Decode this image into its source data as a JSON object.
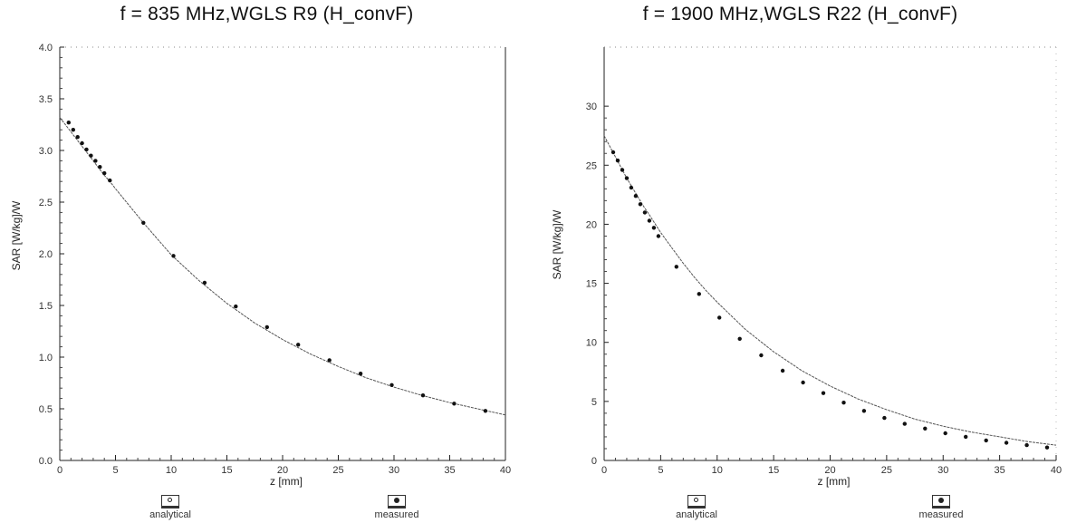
{
  "chart_data": [
    {
      "type": "line",
      "title": "f = 835 MHz,WGLS R9 (H_convF)",
      "xlabel": "z [mm]",
      "ylabel": "SAR [W/kg]/W",
      "xlim": [
        0,
        40
      ],
      "ylim": [
        0,
        4.0
      ],
      "x_ticks": [
        0,
        5,
        10,
        15,
        20,
        25,
        30,
        35,
        40
      ],
      "y_ticks": [
        0.0,
        0.5,
        1.0,
        1.5,
        2.0,
        2.5,
        3.0,
        3.5,
        4.0
      ],
      "x_tick_labels": [
        "0",
        "5",
        "10",
        "15",
        "20",
        "25",
        "30",
        "35",
        "40"
      ],
      "y_tick_labels": [
        "0.0",
        "0.5",
        "1.0",
        "1.5",
        "2.0",
        "2.5",
        "3.0",
        "3.5",
        "4.0"
      ],
      "grid": false,
      "legend": [
        "analytical",
        "measured"
      ],
      "series": [
        {
          "name": "analytical",
          "x": [
            0.0,
            0.5,
            1.0,
            1.5,
            2.0,
            2.5,
            3.0,
            3.5,
            4.0,
            4.5,
            5.0,
            7.5,
            10.0,
            12.5,
            15.0,
            17.5,
            20.0,
            22.5,
            25.0,
            27.5,
            30.0,
            32.5,
            35.0,
            37.5,
            40.0
          ],
          "y": [
            3.32,
            3.25,
            3.18,
            3.11,
            3.04,
            2.97,
            2.9,
            2.83,
            2.76,
            2.7,
            2.63,
            2.3,
            1.99,
            1.74,
            1.52,
            1.33,
            1.17,
            1.03,
            0.91,
            0.8,
            0.71,
            0.63,
            0.56,
            0.5,
            0.44
          ]
        },
        {
          "name": "measured",
          "x": [
            0.8,
            1.2,
            1.6,
            2.0,
            2.4,
            2.8,
            3.2,
            3.6,
            4.0,
            4.5,
            7.5,
            10.2,
            13.0,
            15.8,
            18.6,
            21.4,
            24.2,
            27.0,
            29.8,
            32.6,
            35.4,
            38.2
          ],
          "y": [
            3.27,
            3.2,
            3.13,
            3.07,
            3.01,
            2.95,
            2.9,
            2.84,
            2.78,
            2.71,
            2.3,
            1.98,
            1.72,
            1.49,
            1.29,
            1.12,
            0.97,
            0.84,
            0.73,
            0.63,
            0.55,
            0.48
          ]
        }
      ]
    },
    {
      "type": "line",
      "title": "f = 1900 MHz,WGLS R22 (H_convF)",
      "xlabel": "z [mm]",
      "ylabel": "SAR [W/kg]/W",
      "xlim": [
        0,
        40
      ],
      "ylim": [
        0,
        35
      ],
      "x_ticks": [
        0,
        5,
        10,
        15,
        20,
        25,
        30,
        35,
        40
      ],
      "y_ticks": [
        0,
        5,
        10,
        15,
        20,
        25,
        30
      ],
      "x_tick_labels": [
        "0",
        "5",
        "10",
        "15",
        "20",
        "25",
        "30",
        "35",
        "40"
      ],
      "y_tick_labels": [
        "0",
        "5",
        "10",
        "15",
        "20",
        "25",
        "30"
      ],
      "grid": false,
      "legend": [
        "analytical",
        "measured"
      ],
      "series": [
        {
          "name": "analytical",
          "x": [
            0.0,
            0.5,
            1.0,
            1.5,
            2.0,
            2.5,
            3.0,
            3.5,
            4.0,
            5.0,
            6.0,
            7.0,
            8.0,
            9.0,
            10.0,
            12.5,
            15.0,
            17.5,
            20.0,
            22.5,
            25.0,
            27.5,
            30.0,
            32.5,
            35.0,
            37.5,
            40.0
          ],
          "y": [
            27.5,
            26.6,
            25.7,
            24.8,
            23.9,
            23.1,
            22.3,
            21.5,
            20.8,
            19.3,
            18.0,
            16.7,
            15.5,
            14.4,
            13.4,
            11.1,
            9.2,
            7.6,
            6.3,
            5.2,
            4.3,
            3.5,
            2.9,
            2.4,
            2.0,
            1.6,
            1.3
          ]
        },
        {
          "name": "measured",
          "x": [
            0.8,
            1.2,
            1.6,
            2.0,
            2.4,
            2.8,
            3.2,
            3.6,
            4.0,
            4.4,
            4.8,
            6.4,
            8.4,
            10.2,
            12.0,
            13.9,
            15.8,
            17.6,
            19.4,
            21.2,
            23.0,
            24.8,
            26.6,
            28.4,
            30.2,
            32.0,
            33.8,
            35.6,
            37.4,
            39.2
          ],
          "y": [
            26.1,
            25.4,
            24.6,
            23.9,
            23.1,
            22.4,
            21.7,
            21.0,
            20.3,
            19.7,
            19.0,
            16.4,
            14.1,
            12.1,
            10.3,
            8.9,
            7.6,
            6.6,
            5.7,
            4.9,
            4.2,
            3.6,
            3.1,
            2.7,
            2.3,
            2.0,
            1.7,
            1.5,
            1.3,
            1.1
          ]
        }
      ]
    }
  ]
}
